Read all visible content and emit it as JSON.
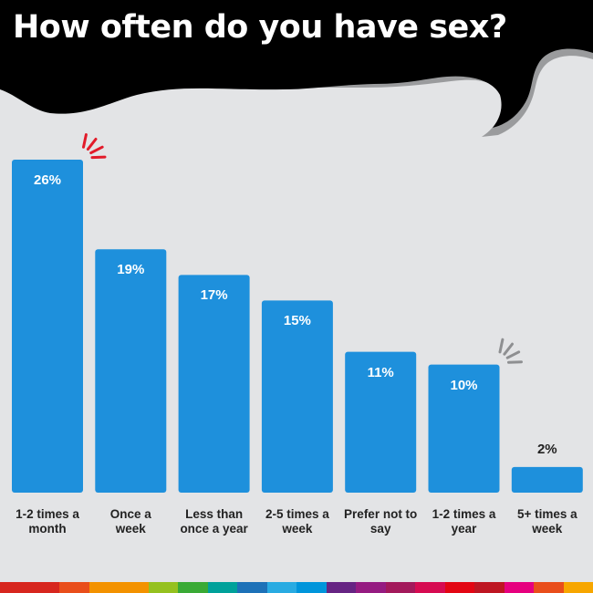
{
  "title": "How often do you have sex?",
  "colors": {
    "background": "#e3e4e6",
    "bar": "#1e90dc",
    "header": "#000000",
    "header_shadow": "#9a9b9d",
    "value_label_inside": "#ffffff",
    "value_label_outside": "#222222",
    "highlight_red": "#e21b2a",
    "highlight_grey": "#8e8f91"
  },
  "chart_data": {
    "type": "bar",
    "title": "How often do you have sex?",
    "categories": [
      "1-2 times a month",
      "Once a week",
      "Less than once a year",
      "2-5 times a week",
      "Prefer not to say",
      "1-2 times a year",
      "5+ times a week"
    ],
    "category_lines": [
      [
        "1-2 times a",
        "month"
      ],
      [
        "Once a",
        "week"
      ],
      [
        "Less than",
        "once a year"
      ],
      [
        "2-5 times a",
        "week"
      ],
      [
        "Prefer not to",
        "say"
      ],
      [
        "1-2 times a",
        "year"
      ],
      [
        "5+ times a",
        "week"
      ]
    ],
    "values": [
      26,
      19,
      17,
      15,
      11,
      10,
      2
    ],
    "value_labels": [
      "26%",
      "19%",
      "17%",
      "15%",
      "11%",
      "10%",
      "2%"
    ],
    "unit": "%",
    "xlabel": "",
    "ylabel": "",
    "ylim": [
      0,
      26
    ],
    "grid": false,
    "highlights": [
      {
        "category_index": 0,
        "marker": "burst-lines",
        "color": "red"
      },
      {
        "category_index": 5,
        "marker": "burst-lines",
        "color": "grey"
      }
    ]
  },
  "footer_stripe_colors": [
    "#d7261e",
    "#d7261e",
    "#e94e1b",
    "#f39200",
    "#f39200",
    "#95c11f",
    "#3aaa35",
    "#00a19a",
    "#1d71b8",
    "#29abe2",
    "#0095db",
    "#662483",
    "#951b81",
    "#a3195b",
    "#d60b51",
    "#e30613",
    "#be1622",
    "#e6007e",
    "#e94e1b",
    "#f7a600"
  ]
}
